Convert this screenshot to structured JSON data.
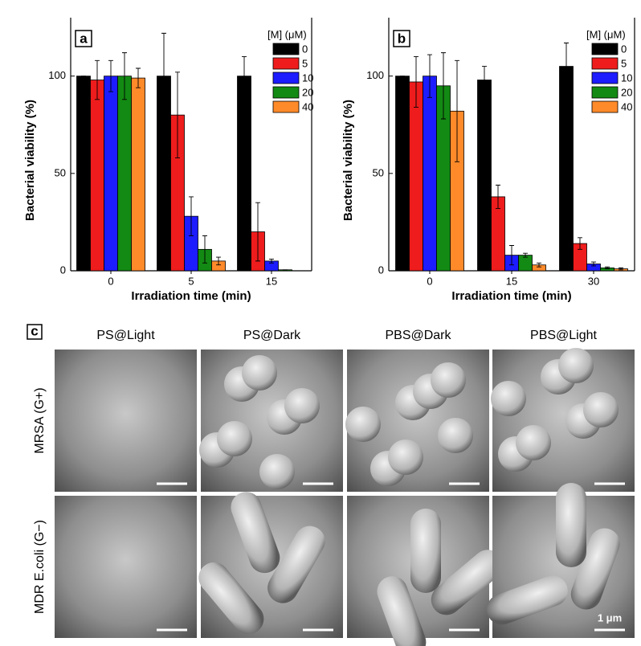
{
  "chart_data": [
    {
      "type": "bar",
      "label": "a",
      "ylabel": "Bacterial viability (%)",
      "xlabel": "Irradiation time (min)",
      "legend_title": "[M] (μM)",
      "categories": [
        "0",
        "5",
        "15"
      ],
      "ylim": [
        0,
        130
      ],
      "yticks": [
        0,
        50,
        100
      ],
      "series": [
        {
          "name": "0",
          "color": "#000000",
          "values": [
            100,
            100,
            100
          ],
          "errors": [
            0,
            22,
            10
          ]
        },
        {
          "name": "5",
          "color": "#ee1c1c",
          "values": [
            98,
            80,
            20
          ],
          "errors": [
            10,
            22,
            15
          ]
        },
        {
          "name": "10",
          "color": "#1c1cff",
          "values": [
            100,
            28,
            5
          ],
          "errors": [
            8,
            10,
            1
          ]
        },
        {
          "name": "20",
          "color": "#138a13",
          "values": [
            100,
            11,
            0.5
          ],
          "errors": [
            12,
            7,
            0
          ]
        },
        {
          "name": "40",
          "color": "#ff8a2a",
          "values": [
            99,
            5,
            0
          ],
          "errors": [
            5,
            2,
            0
          ]
        }
      ]
    },
    {
      "type": "bar",
      "label": "b",
      "ylabel": "Bacterial viability (%)",
      "xlabel": "Irradiation time (min)",
      "legend_title": "[M] (μM)",
      "categories": [
        "0",
        "15",
        "30"
      ],
      "ylim": [
        0,
        130
      ],
      "yticks": [
        0,
        50,
        100
      ],
      "series": [
        {
          "name": "0",
          "color": "#000000",
          "values": [
            100,
            98,
            105
          ],
          "errors": [
            0,
            7,
            12
          ]
        },
        {
          "name": "5",
          "color": "#ee1c1c",
          "values": [
            97,
            38,
            14
          ],
          "errors": [
            13,
            6,
            3
          ]
        },
        {
          "name": "10",
          "color": "#1c1cff",
          "values": [
            100,
            8,
            3.5
          ],
          "errors": [
            11,
            5,
            1
          ]
        },
        {
          "name": "20",
          "color": "#138a13",
          "values": [
            95,
            8,
            1.5
          ],
          "errors": [
            17,
            1,
            0.5
          ]
        },
        {
          "name": "40",
          "color": "#ff8a2a",
          "values": [
            82,
            3,
            1
          ],
          "errors": [
            26,
            1,
            0.5
          ]
        }
      ]
    }
  ],
  "panel_c": {
    "label": "c",
    "columns": [
      "PS@Light",
      "PS@Dark",
      "PBS@Dark",
      "PBS@Light"
    ],
    "rows": [
      "MRSA (G+)",
      "MDR E.coli (G−)"
    ],
    "scale_bar": "1 μm"
  }
}
